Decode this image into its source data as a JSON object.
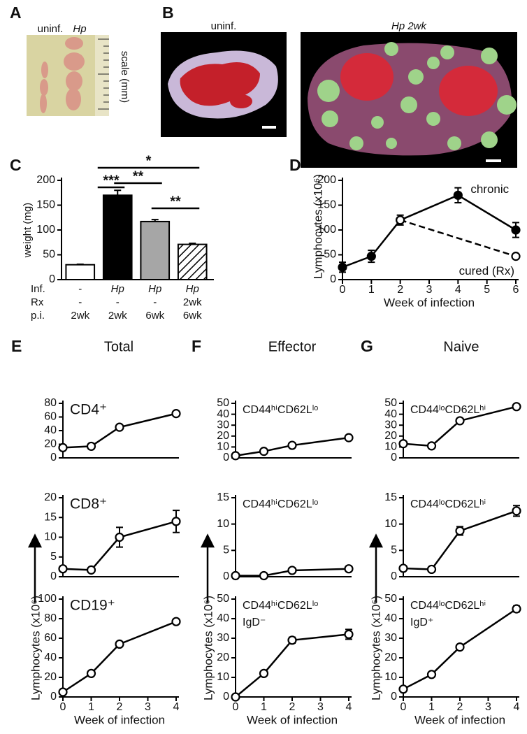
{
  "panel_labels": [
    "A",
    "B",
    "C",
    "D",
    "E",
    "F",
    "G"
  ],
  "panel_a": {
    "labels": [
      "uninf.",
      "Hp"
    ],
    "scale_label": "scale (mm)"
  },
  "panel_b": {
    "labels": [
      "uninf.",
      "Hp 2wk"
    ]
  },
  "column_titles": [
    "Total",
    "Effector",
    "Naive"
  ],
  "chart_data": [
    {
      "type": "bar",
      "ylabel": "weight (mg)",
      "values": [
        30,
        170,
        117,
        71
      ],
      "errors": [
        1,
        10,
        4,
        2
      ],
      "colors": [
        "#ffffff",
        "#000000",
        "#a6a6a6",
        "#ffffff"
      ],
      "hatched": [
        false,
        false,
        false,
        true
      ],
      "ylim": [
        0,
        200
      ],
      "yticks": [
        0,
        50,
        100,
        150,
        200
      ],
      "significance": [
        {
          "from": 0,
          "to": 1,
          "label": "***"
        },
        {
          "from": 1,
          "to": 2,
          "label": "**"
        },
        {
          "from": 2,
          "to": 3,
          "label": "**"
        },
        {
          "from": 0,
          "to": 3,
          "label": "*"
        }
      ],
      "table": [
        {
          "label": "Inf.",
          "cells": [
            "-",
            "Hp",
            "Hp",
            "Hp"
          ]
        },
        {
          "label": "Rx",
          "cells": [
            "-",
            "-",
            "-",
            "2wk"
          ]
        },
        {
          "label": "p.i.",
          "cells": [
            "2wk",
            "2wk",
            "6wk",
            "6wk"
          ]
        }
      ]
    },
    {
      "type": "line",
      "xlabel": "Week of infection",
      "ylabel": "Lymphocytes (x10⁶)",
      "xlim": [
        0,
        6
      ],
      "xticks": [
        0,
        1,
        2,
        3,
        4,
        5,
        6
      ],
      "ylim": [
        0,
        200
      ],
      "yticks": [
        0,
        50,
        100,
        150,
        200
      ],
      "series": [
        {
          "name": "chronic",
          "x": [
            0,
            1,
            2,
            4,
            6
          ],
          "values": [
            25,
            47,
            120,
            170,
            100
          ],
          "errors": [
            10,
            12,
            10,
            15,
            15
          ],
          "marker": "filled",
          "line": "solid"
        },
        {
          "name": "cured (Rx)",
          "x": [
            2,
            6
          ],
          "values": [
            120,
            47
          ],
          "marker": "open",
          "line": "dashed"
        }
      ]
    },
    {
      "type": "line",
      "annotation": [
        "CD4⁺"
      ],
      "x": [
        0,
        1,
        2,
        4
      ],
      "values": [
        15,
        17,
        45,
        65
      ],
      "errors": [
        2,
        2,
        1,
        3
      ],
      "xlim": [
        0,
        4
      ],
      "ylim": [
        0,
        80
      ],
      "yticks": [
        0,
        20,
        40,
        60,
        80
      ]
    },
    {
      "type": "line",
      "annotation": [
        "CD8⁺"
      ],
      "x": [
        0,
        1,
        2,
        4
      ],
      "values": [
        2,
        1.7,
        10,
        14
      ],
      "errors": [
        0.3,
        0.2,
        2.5,
        2.8
      ],
      "xlim": [
        0,
        4
      ],
      "ylim": [
        0,
        20
      ],
      "yticks": [
        0,
        5,
        10,
        15,
        20
      ]
    },
    {
      "type": "line",
      "annotation": [
        "CD19⁺"
      ],
      "x": [
        0,
        1,
        2,
        4
      ],
      "values": [
        5,
        24,
        54,
        77
      ],
      "errors": [
        1,
        1,
        1,
        2
      ],
      "xlim": [
        0,
        4
      ],
      "ylim": [
        0,
        100
      ],
      "yticks": [
        0,
        20,
        40,
        60,
        80,
        100
      ],
      "xticks": [
        0,
        1,
        2,
        3,
        4
      ],
      "xlabel": "Week of infection",
      "ylabel": "Lymphocytes (x10⁶)"
    },
    {
      "type": "line",
      "annotation": [
        "CD44ʰⁱCD62Lˡᵒ"
      ],
      "x": [
        0,
        1,
        2,
        4
      ],
      "values": [
        2,
        6,
        11.5,
        18.5
      ],
      "errors": [
        0.3,
        0.4,
        0.5,
        0.6
      ],
      "xlim": [
        0,
        4
      ],
      "ylim": [
        0,
        50
      ],
      "yticks": [
        0,
        10,
        20,
        30,
        40,
        50
      ]
    },
    {
      "type": "line",
      "annotation": [
        "CD44ʰⁱCD62Lˡᵒ"
      ],
      "x": [
        0,
        1,
        2,
        4
      ],
      "values": [
        0.2,
        0.2,
        1.2,
        1.5
      ],
      "errors": [
        0.05,
        0.05,
        0.1,
        0.1
      ],
      "xlim": [
        0,
        4
      ],
      "ylim": [
        0,
        15
      ],
      "yticks": [
        0,
        5,
        10,
        15
      ]
    },
    {
      "type": "line",
      "annotation": [
        "CD44ʰⁱCD62Lˡᵒ",
        "IgD⁻"
      ],
      "x": [
        0,
        1,
        2,
        4
      ],
      "values": [
        0,
        12,
        29,
        32
      ],
      "errors": [
        0.3,
        0.5,
        1.5,
        2.5
      ],
      "xlim": [
        0,
        4
      ],
      "ylim": [
        0,
        50
      ],
      "yticks": [
        0,
        10,
        20,
        30,
        40,
        50
      ],
      "xticks": [
        0,
        1,
        2,
        3,
        4
      ],
      "xlabel": "Week of infection",
      "ylabel": "Lymphocytes (x10⁶)"
    },
    {
      "type": "line",
      "annotation": [
        "CD44ˡᵒCD62Lʰⁱ"
      ],
      "x": [
        0,
        1,
        2,
        4
      ],
      "values": [
        13,
        11,
        34,
        47
      ],
      "errors": [
        2,
        1,
        2,
        2
      ],
      "xlim": [
        0,
        4
      ],
      "ylim": [
        0,
        50
      ],
      "yticks": [
        0,
        10,
        20,
        30,
        40,
        50
      ]
    },
    {
      "type": "line",
      "annotation": [
        "CD44ˡᵒCD62Lʰⁱ"
      ],
      "x": [
        0,
        1,
        2,
        4
      ],
      "values": [
        1.6,
        1.4,
        8.7,
        12.5
      ],
      "errors": [
        0.2,
        0.2,
        0.8,
        1
      ],
      "xlim": [
        0,
        4
      ],
      "ylim": [
        0,
        15
      ],
      "yticks": [
        0,
        5,
        10,
        15
      ]
    },
    {
      "type": "line",
      "annotation": [
        "CD44ˡᵒCD62Lʰⁱ",
        "IgD⁺"
      ],
      "x": [
        0,
        1,
        2,
        4
      ],
      "values": [
        4,
        11.5,
        25.5,
        45
      ],
      "errors": [
        0.5,
        1,
        0.5,
        1.5
      ],
      "xlim": [
        0,
        4
      ],
      "ylim": [
        0,
        50
      ],
      "yticks": [
        0,
        10,
        20,
        30,
        40,
        50
      ],
      "xticks": [
        0,
        1,
        2,
        3,
        4
      ],
      "xlabel": "Week of infection",
      "ylabel": "Lymphocytes (x10⁶)"
    }
  ]
}
